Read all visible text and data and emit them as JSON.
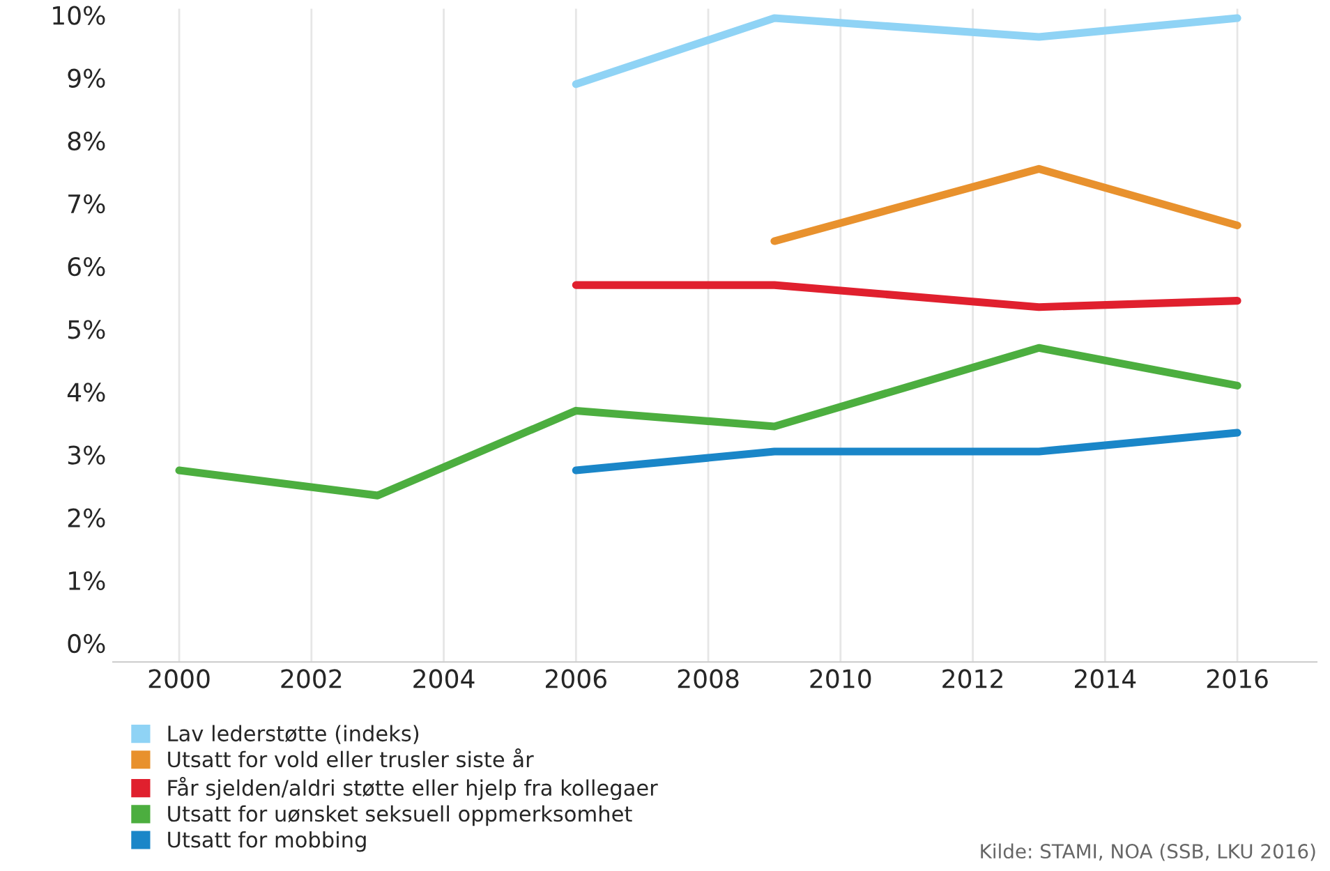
{
  "chart_data": {
    "type": "line",
    "x": [
      2000,
      2003,
      2006,
      2009,
      2013,
      2016
    ],
    "series": [
      {
        "name": "Lav lederstøtte (indeks)",
        "color": "#8fd3f5",
        "values": [
          null,
          null,
          8.9,
          9.95,
          9.65,
          9.95
        ]
      },
      {
        "name": "Utsatt for vold eller trusler siste år",
        "color": "#e8912d",
        "values": [
          null,
          null,
          null,
          6.4,
          7.55,
          6.65
        ]
      },
      {
        "name": "Får sjelden/aldri støtte eller hjelp fra kollegaer",
        "color": "#e0202e",
        "values": [
          null,
          null,
          5.7,
          5.7,
          5.35,
          5.45
        ]
      },
      {
        "name": "Utsatt for uønsket seksuell oppmerksomhet",
        "color": "#4cae3f",
        "values": [
          2.75,
          2.35,
          3.7,
          3.45,
          4.7,
          4.1
        ]
      },
      {
        "name": "Utsatt for mobbing",
        "color": "#1a86c8",
        "values": [
          null,
          null,
          2.75,
          3.05,
          3.05,
          3.35
        ]
      }
    ],
    "xlim": [
      1999,
      2017.2
    ],
    "xticks": [
      2000,
      2002,
      2004,
      2006,
      2008,
      2010,
      2012,
      2014,
      2016
    ],
    "ylim": [
      -0.3,
      10.1
    ],
    "yticks": [
      {
        "value": 0,
        "label": "0%"
      },
      {
        "value": 1,
        "label": "1%"
      },
      {
        "value": 2,
        "label": "2%"
      },
      {
        "value": 3,
        "label": "3%"
      },
      {
        "value": 4,
        "label": "4%"
      },
      {
        "value": 5,
        "label": "5%"
      },
      {
        "value": 6,
        "label": "6%"
      },
      {
        "value": 7,
        "label": "7%"
      },
      {
        "value": 8,
        "label": "8%"
      },
      {
        "value": 9,
        "label": "9%"
      },
      {
        "value": 10,
        "label": "10%"
      }
    ],
    "grid": "x",
    "legend": "bottom",
    "marker": "none",
    "line_style": "solid",
    "annotations": [
      "Kilde: STAMI, NOA (SSB, LKU 2016)"
    ]
  }
}
